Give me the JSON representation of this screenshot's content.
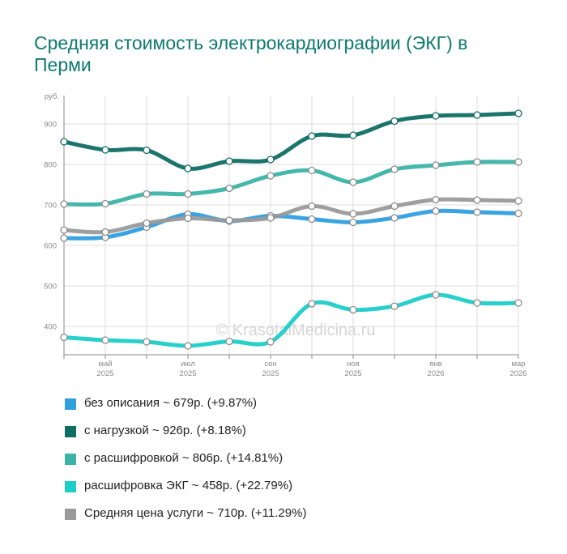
{
  "title": "Средняя стоимость электрокардиографии (ЭКГ) в Перми",
  "watermark": "© KrasotaiMedicina.ru",
  "chart_data": {
    "type": "line",
    "ylabel": "руб.",
    "ylim": [
      330,
      970
    ],
    "yticks": [
      400,
      500,
      600,
      700,
      800,
      900
    ],
    "x": [
      0,
      1,
      2,
      3,
      4,
      5,
      6,
      7,
      8,
      9,
      10,
      11
    ],
    "xticks": [
      {
        "i": 0,
        "month": "",
        "year": ""
      },
      {
        "i": 1,
        "month": "май",
        "year": "2025"
      },
      {
        "i": 2,
        "month": "",
        "year": ""
      },
      {
        "i": 3,
        "month": "июл",
        "year": "2025"
      },
      {
        "i": 4,
        "month": "",
        "year": ""
      },
      {
        "i": 5,
        "month": "сен",
        "year": "2025"
      },
      {
        "i": 6,
        "month": "",
        "year": ""
      },
      {
        "i": 7,
        "month": "ноя",
        "year": "2025"
      },
      {
        "i": 8,
        "month": "",
        "year": ""
      },
      {
        "i": 9,
        "month": "янв",
        "year": "2026"
      },
      {
        "i": 10,
        "month": "",
        "year": ""
      },
      {
        "i": 11,
        "month": "мар",
        "year": "2026"
      }
    ],
    "series": [
      {
        "name": "без описания",
        "color": "#2f9fe0",
        "legend": "без описания ~ 679р. (+9.87%)",
        "values": [
          618,
          620,
          645,
          677,
          660,
          673,
          665,
          657,
          668,
          685,
          682,
          679
        ]
      },
      {
        "name": "с нагрузкой",
        "color": "#0f6e64",
        "legend": "с нагрузкой ~ 926р. (+8.18%)",
        "values": [
          856,
          836,
          835,
          790,
          808,
          812,
          870,
          872,
          907,
          920,
          922,
          926
        ]
      },
      {
        "name": "с расшифровкой",
        "color": "#3cb3a6",
        "legend": "с расшифровкой ~ 806р. (+14.81%)",
        "values": [
          702,
          703,
          727,
          727,
          741,
          772,
          785,
          756,
          788,
          798,
          806,
          806
        ]
      },
      {
        "name": "расшифровка ЭКГ",
        "color": "#1ccdc8",
        "legend": "расшифровка ЭКГ ~ 458р. (+22.79%)",
        "values": [
          373,
          366,
          362,
          352,
          363,
          362,
          456,
          441,
          450,
          478,
          458,
          458
        ]
      },
      {
        "name": "Средняя цена услуги",
        "color": "#9a9a9a",
        "legend": "Средняя цена услуги ~ 710р. (+11.29%)",
        "values": [
          638,
          633,
          655,
          667,
          662,
          668,
          697,
          678,
          697,
          713,
          712,
          710
        ]
      }
    ]
  }
}
